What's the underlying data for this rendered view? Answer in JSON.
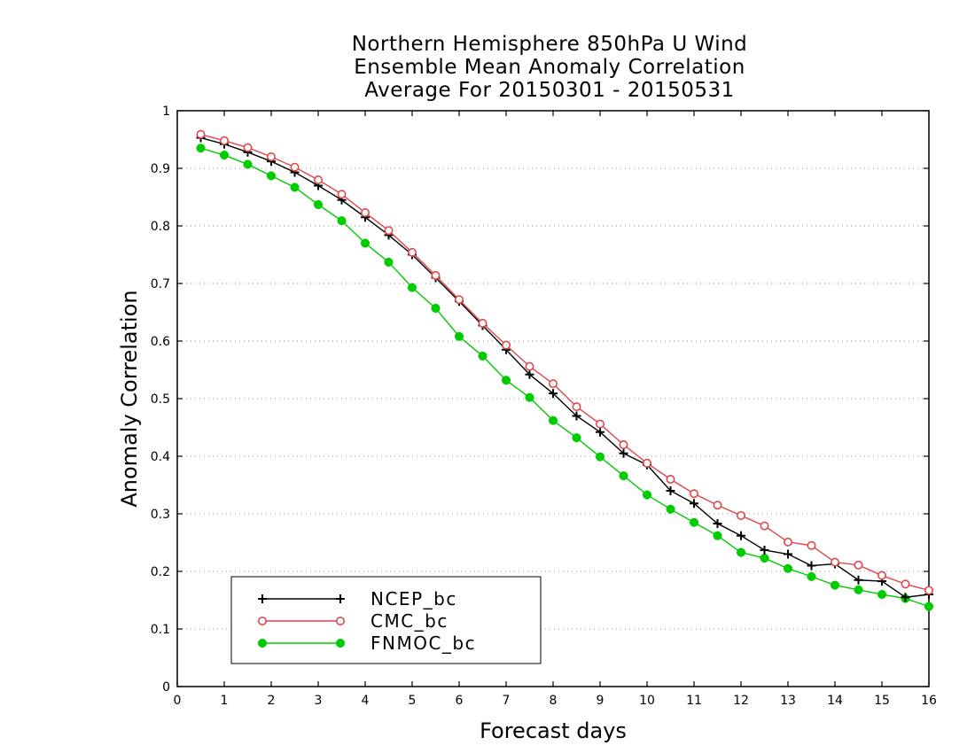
{
  "chart_data": {
    "type": "line",
    "title": [
      "Northern Hemisphere 850hPa U Wind",
      "Ensemble Mean Anomaly Correlation",
      "Average For 20150301 - 20150531"
    ],
    "xlabel": "Forecast days",
    "ylabel": "Anomaly Correlation",
    "xlim": [
      0,
      16
    ],
    "ylim": [
      0,
      1
    ],
    "x_ticks": [
      "0",
      "1",
      "2",
      "3",
      "4",
      "5",
      "6",
      "7",
      "8",
      "9",
      "10",
      "11",
      "12",
      "13",
      "14",
      "15",
      "16"
    ],
    "y_ticks": [
      "0",
      "0.1",
      "0.2",
      "0.3",
      "0.4",
      "0.5",
      "0.6",
      "0.7",
      "0.8",
      "0.9",
      "1"
    ],
    "grid": "horizontal dotted",
    "legend_position": "bottom-left",
    "x": [
      0.5,
      1,
      1.5,
      2,
      2.5,
      3,
      3.5,
      4,
      4.5,
      5,
      5.5,
      6,
      6.5,
      7,
      7.5,
      8,
      8.5,
      9,
      9.5,
      10,
      10.5,
      11,
      11.5,
      12,
      12.5,
      13,
      13.5,
      14,
      14.5,
      15,
      15.5,
      16
    ],
    "series": [
      {
        "name": "NCEP_bc",
        "color": "#000000",
        "marker": "plus",
        "values": [
          0.953,
          0.942,
          0.928,
          0.912,
          0.893,
          0.87,
          0.845,
          0.815,
          0.784,
          0.75,
          0.71,
          0.669,
          0.627,
          0.585,
          0.542,
          0.509,
          0.47,
          0.442,
          0.405,
          0.385,
          0.34,
          0.318,
          0.283,
          0.262,
          0.237,
          0.23,
          0.21,
          0.213,
          0.185,
          0.183,
          0.155,
          0.16
        ]
      },
      {
        "name": "CMC_bc",
        "color": "#e0474c",
        "marker": "open-circle",
        "values": [
          0.959,
          0.948,
          0.936,
          0.92,
          0.902,
          0.88,
          0.855,
          0.823,
          0.792,
          0.754,
          0.714,
          0.672,
          0.631,
          0.593,
          0.556,
          0.526,
          0.486,
          0.456,
          0.42,
          0.388,
          0.36,
          0.335,
          0.315,
          0.297,
          0.279,
          0.251,
          0.245,
          0.216,
          0.211,
          0.193,
          0.178,
          0.167
        ]
      },
      {
        "name": "FNMOC_bc",
        "color": "#00cc00",
        "marker": "filled-circle",
        "values": [
          0.935,
          0.923,
          0.907,
          0.887,
          0.867,
          0.837,
          0.809,
          0.77,
          0.737,
          0.693,
          0.657,
          0.608,
          0.574,
          0.532,
          0.502,
          0.462,
          0.432,
          0.399,
          0.366,
          0.333,
          0.308,
          0.285,
          0.262,
          0.233,
          0.223,
          0.205,
          0.191,
          0.176,
          0.168,
          0.16,
          0.153,
          0.139
        ]
      }
    ]
  }
}
